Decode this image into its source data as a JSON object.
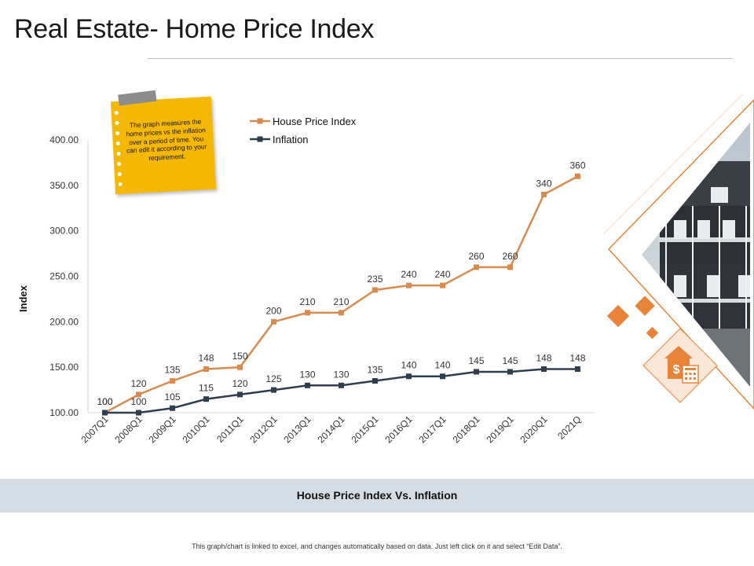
{
  "page": {
    "title": "Real Estate- Home Price Index",
    "note": "The graph measures the home prices vs the inflation over a period of time. You can edit it according to your requirement.",
    "caption": "House Price Index Vs. Inflation",
    "disclaimer": "This graph/chart is linked to excel, and changes automatically based on data. Just left click on it and select “Edit Data”."
  },
  "chart_data": {
    "type": "line",
    "title": "",
    "xlabel": "",
    "ylabel": "Index",
    "ylim": [
      100,
      400
    ],
    "yticks": [
      "100.00",
      "150.00",
      "200.00",
      "250.00",
      "300.00",
      "350.00",
      "400.00"
    ],
    "categories": [
      "2007Q1",
      "2008Q1",
      "2009Q1",
      "2010Q1",
      "2011Q1",
      "2012Q1",
      "2013Q1",
      "2014Q1",
      "2015Q1",
      "2016Q1",
      "2017Q1",
      "2018Q1",
      "2019Q1",
      "2020Q1",
      "2021Q"
    ],
    "grid": false,
    "legend_position": "top",
    "series": [
      {
        "name": "House Price Index",
        "color": "#d98a4f",
        "values": [
          100,
          120,
          135,
          148,
          150,
          200,
          210,
          210,
          235,
          240,
          240,
          260,
          260,
          340,
          360
        ]
      },
      {
        "name": "Inflation",
        "color": "#2f3e4e",
        "values": [
          100,
          100,
          105,
          115,
          120,
          125,
          130,
          130,
          135,
          140,
          140,
          145,
          145,
          148,
          148
        ]
      }
    ]
  },
  "decor": {
    "accent": "#e8833a",
    "accent_light": "#f6d9c2",
    "icons": [
      "house-photo",
      "diamond-shapes",
      "house-dollar-icon"
    ]
  }
}
